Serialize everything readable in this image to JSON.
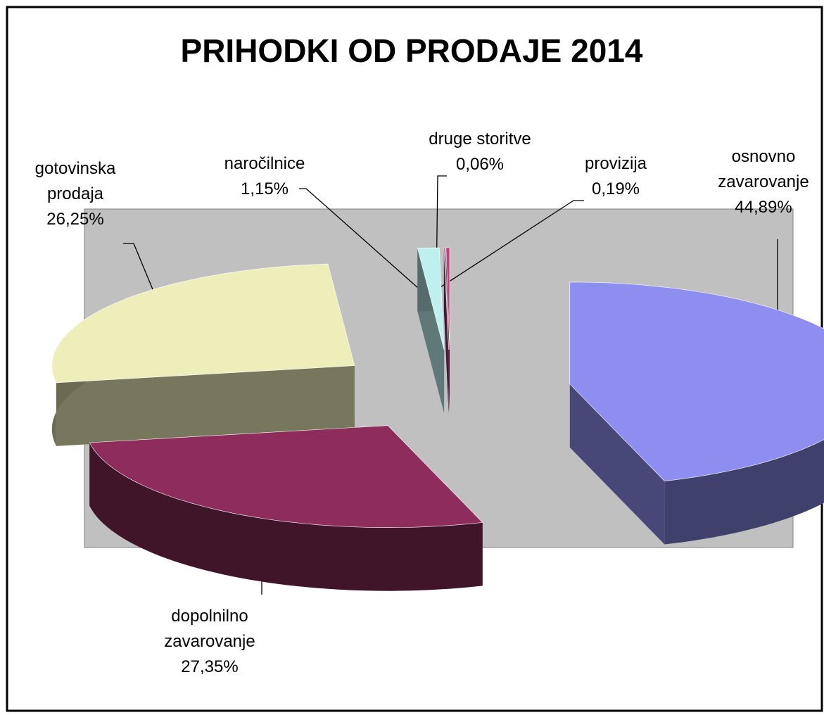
{
  "chart_data": {
    "type": "pie3d",
    "title": "PRIHODKI OD PRODAJE 2014",
    "categories": [
      "osnovno zavarovanje",
      "dopolnilno zavarovanje",
      "gotovinska prodaja",
      "naročilnice",
      "druge storitve",
      "provizija"
    ],
    "values": [
      44.89,
      27.35,
      26.25,
      1.15,
      0.06,
      0.19
    ],
    "value_labels": [
      "44,89%",
      "27,35%",
      "26,25%",
      "1,15%",
      "0,06%",
      "0,19%"
    ],
    "colors": [
      "#8d8ef0",
      "#8e2d5c",
      "#eeeebb",
      "#bff0f0",
      "#6a3a7a",
      "#c0407a"
    ],
    "exploded": true
  }
}
